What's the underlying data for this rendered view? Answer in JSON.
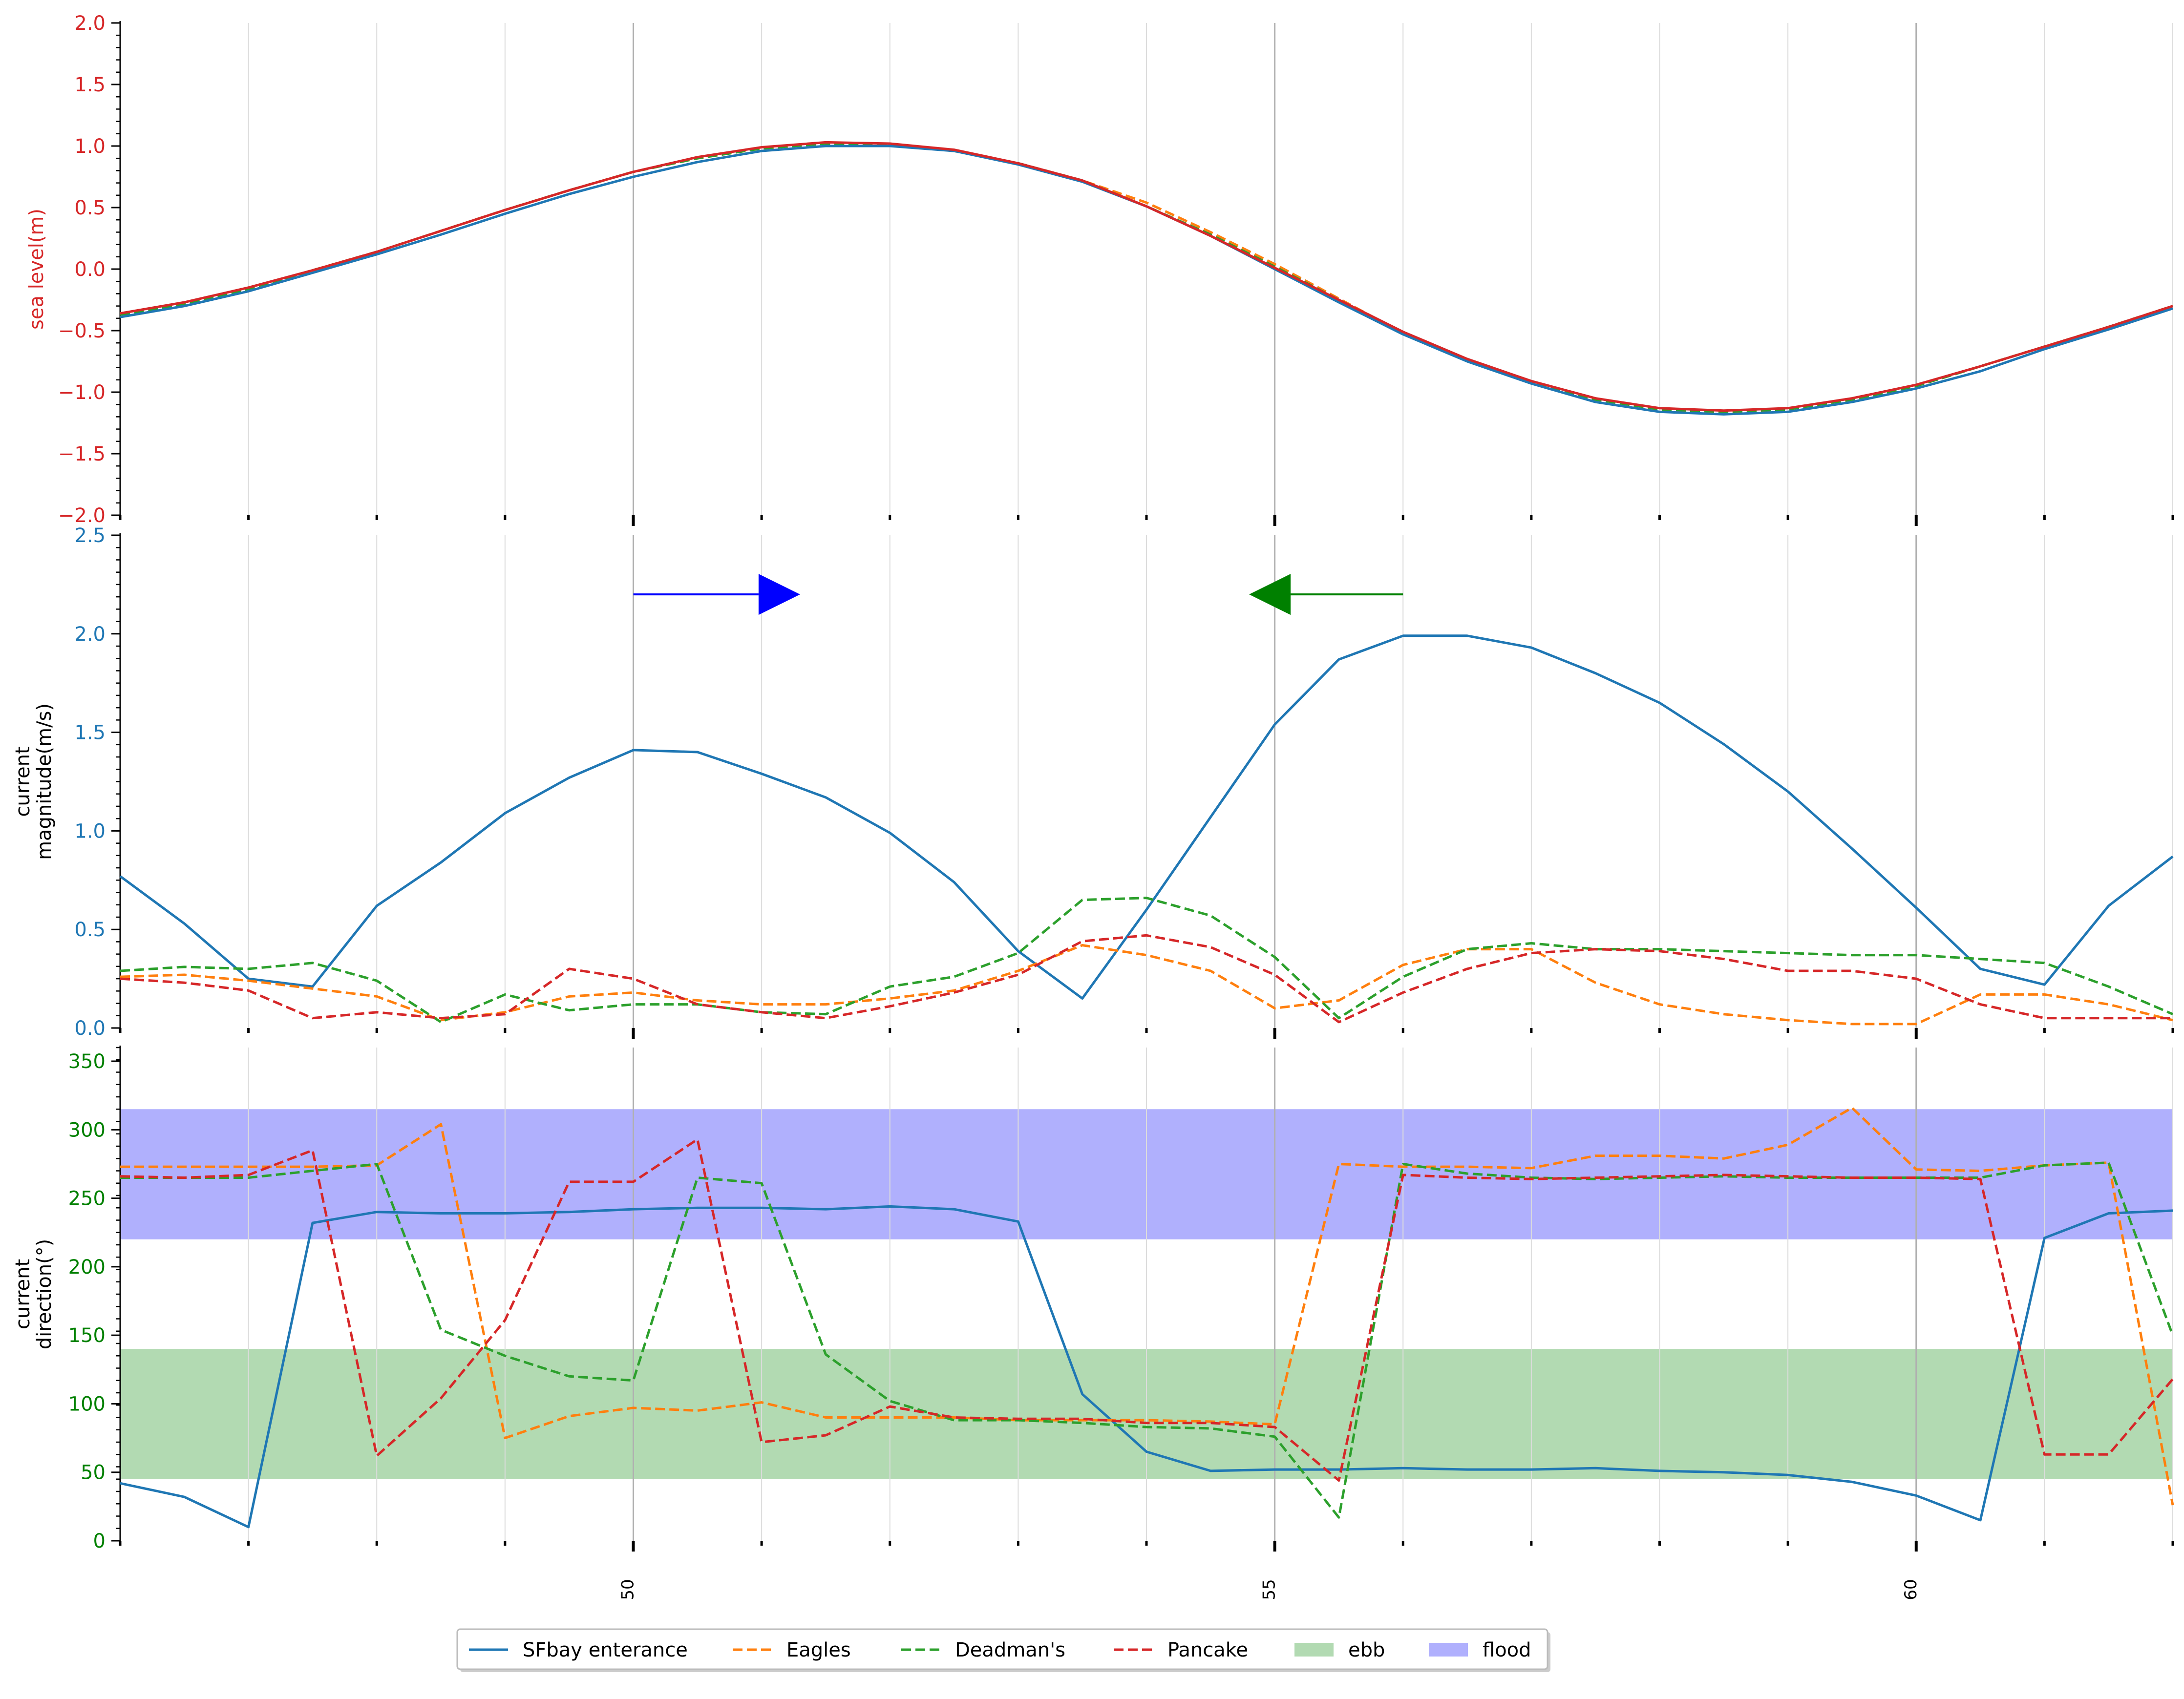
{
  "colors": {
    "sfbay": "#1f77b4",
    "eagles": "#ff7f0e",
    "deadmans": "#2ca02c",
    "pancake": "#d62728",
    "ebb": "#b2dab2",
    "flood": "#b0b0fd",
    "arrow_flood": "#0000ff",
    "arrow_ebb": "#008000"
  },
  "legend": [
    {
      "label": "SFbay enterance",
      "type": "line",
      "color": "#1f77b4",
      "dash": false
    },
    {
      "label": "Eagles",
      "type": "line",
      "color": "#ff7f0e",
      "dash": true
    },
    {
      "label": "Deadman's",
      "type": "line",
      "color": "#2ca02c",
      "dash": true
    },
    {
      "label": "Pancake",
      "type": "line",
      "color": "#d62728",
      "dash": true
    },
    {
      "label": "ebb",
      "type": "patch",
      "color": "#b2dab2"
    },
    {
      "label": "flood",
      "type": "patch",
      "color": "#b0b0fd"
    }
  ],
  "chart_data": [
    {
      "type": "line",
      "panel": "sea-level",
      "ylabel": "sea level(m)",
      "ylabel_color": "#d62728",
      "tick_color": "#d62728",
      "ylim": [
        -2.0,
        2.0
      ],
      "yticks": [
        "2.0",
        "1.5",
        "1.0",
        "0.5",
        "0.0",
        "−0.5",
        "−1.0",
        "−1.5",
        "−2.0"
      ],
      "ytick_values": [
        2.0,
        1.5,
        1.0,
        0.5,
        0.0,
        -0.5,
        -1.0,
        -1.5,
        -2.0
      ],
      "xlim": [
        46,
        62
      ],
      "grid": "vertical",
      "x": [
        46,
        46.5,
        47,
        47.5,
        48,
        48.5,
        49,
        49.5,
        50,
        50.5,
        51,
        51.5,
        52,
        52.5,
        53,
        53.5,
        54,
        54.5,
        55,
        55.5,
        56,
        56.5,
        57,
        57.5,
        58,
        58.5,
        59,
        59.5,
        60,
        60.5,
        61,
        61.5,
        62
      ],
      "series": [
        {
          "name": "Eagles",
          "color": "#ff7f0e",
          "dash": true,
          "values": [
            -0.36,
            -0.28,
            -0.16,
            -0.01,
            0.14,
            0.31,
            0.48,
            0.64,
            0.79,
            0.9,
            0.98,
            1.02,
            1.01,
            0.96,
            0.86,
            0.72,
            0.54,
            0.3,
            0.04,
            -0.24,
            -0.52,
            -0.74,
            -0.92,
            -1.06,
            -1.14,
            -1.17,
            -1.14,
            -1.06,
            -0.95,
            -0.79,
            -0.63,
            -0.47,
            -0.3
          ]
        },
        {
          "name": "Deadman's",
          "color": "#2ca02c",
          "dash": true,
          "values": [
            -0.37,
            -0.29,
            -0.16,
            -0.01,
            0.14,
            0.31,
            0.48,
            0.64,
            0.79,
            0.9,
            0.98,
            1.02,
            1.01,
            0.96,
            0.86,
            0.72,
            0.51,
            0.28,
            0.02,
            -0.25,
            -0.52,
            -0.74,
            -0.92,
            -1.06,
            -1.14,
            -1.16,
            -1.14,
            -1.06,
            -0.95,
            -0.79,
            -0.63,
            -0.47,
            -0.3
          ]
        },
        {
          "name": "SFbay enterance",
          "color": "#1f77b4",
          "dash": false,
          "values": [
            -0.39,
            -0.3,
            -0.18,
            -0.03,
            0.12,
            0.28,
            0.45,
            0.61,
            0.75,
            0.87,
            0.96,
            1.0,
            1.0,
            0.96,
            0.85,
            0.71,
            0.51,
            0.27,
            0.0,
            -0.27,
            -0.53,
            -0.75,
            -0.93,
            -1.08,
            -1.16,
            -1.18,
            -1.16,
            -1.08,
            -0.97,
            -0.83,
            -0.65,
            -0.49,
            -0.32
          ]
        },
        {
          "name": "Pancake",
          "color": "#d62728",
          "dash": false,
          "values": [
            -0.36,
            -0.27,
            -0.15,
            -0.01,
            0.14,
            0.31,
            0.48,
            0.64,
            0.79,
            0.91,
            0.99,
            1.03,
            1.02,
            0.97,
            0.86,
            0.72,
            0.51,
            0.27,
            0.01,
            -0.25,
            -0.51,
            -0.73,
            -0.91,
            -1.05,
            -1.13,
            -1.15,
            -1.13,
            -1.05,
            -0.94,
            -0.79,
            -0.63,
            -0.47,
            -0.3
          ]
        }
      ]
    },
    {
      "type": "line",
      "panel": "current-magnitude",
      "ylabel": [
        "current",
        "magnitude(m/s)"
      ],
      "ylabel_color": "#000000",
      "tick_color": "#1f77b4",
      "ylim": [
        0.0,
        2.5
      ],
      "yticks": [
        "2.5",
        "2.0",
        "1.5",
        "1.0",
        "0.5",
        "0.0"
      ],
      "ytick_values": [
        2.5,
        2.0,
        1.5,
        1.0,
        0.5,
        0.0
      ],
      "xlim": [
        46,
        62
      ],
      "grid": "vertical",
      "arrows": [
        {
          "direction": "right",
          "from": 50,
          "to": 51.3,
          "y": 2.2,
          "color": "#0000ff"
        },
        {
          "direction": "left",
          "from": 56,
          "to": 54.8,
          "y": 2.2,
          "color": "#008000"
        }
      ],
      "x": [
        46,
        46.5,
        47,
        47.5,
        48,
        48.5,
        49,
        49.5,
        50,
        50.5,
        51,
        51.5,
        52,
        52.5,
        53,
        53.5,
        54,
        54.5,
        55,
        55.5,
        56,
        56.5,
        57,
        57.5,
        58,
        58.5,
        59,
        59.5,
        60,
        60.5,
        61,
        61.5,
        62
      ],
      "series": [
        {
          "name": "SFbay enterance",
          "color": "#1f77b4",
          "dash": false,
          "values": [
            0.77,
            0.53,
            0.25,
            0.21,
            0.62,
            0.84,
            1.09,
            1.27,
            1.41,
            1.4,
            1.29,
            1.17,
            0.99,
            0.74,
            0.39,
            0.15,
            0.6,
            1.07,
            1.54,
            1.87,
            1.99,
            1.99,
            1.93,
            1.8,
            1.65,
            1.44,
            1.2,
            0.91,
            0.61,
            0.3,
            0.22,
            0.62,
            0.87
          ]
        },
        {
          "name": "Eagles",
          "color": "#ff7f0e",
          "dash": true,
          "values": [
            0.26,
            0.27,
            0.24,
            0.2,
            0.16,
            0.04,
            0.08,
            0.16,
            0.18,
            0.14,
            0.12,
            0.12,
            0.15,
            0.19,
            0.29,
            0.42,
            0.37,
            0.29,
            0.1,
            0.14,
            0.32,
            0.4,
            0.4,
            0.23,
            0.12,
            0.07,
            0.04,
            0.02,
            0.02,
            0.17,
            0.17,
            0.12,
            0.04
          ]
        },
        {
          "name": "Deadman's",
          "color": "#2ca02c",
          "dash": true,
          "values": [
            0.29,
            0.31,
            0.3,
            0.33,
            0.24,
            0.03,
            0.17,
            0.09,
            0.12,
            0.12,
            0.08,
            0.07,
            0.21,
            0.26,
            0.38,
            0.65,
            0.66,
            0.57,
            0.36,
            0.05,
            0.26,
            0.4,
            0.43,
            0.4,
            0.4,
            0.39,
            0.38,
            0.37,
            0.37,
            0.35,
            0.33,
            0.21,
            0.07
          ]
        },
        {
          "name": "Pancake",
          "color": "#d62728",
          "dash": true,
          "values": [
            0.25,
            0.23,
            0.19,
            0.05,
            0.08,
            0.05,
            0.07,
            0.3,
            0.25,
            0.12,
            0.08,
            0.05,
            0.11,
            0.18,
            0.27,
            0.44,
            0.47,
            0.41,
            0.27,
            0.03,
            0.18,
            0.3,
            0.38,
            0.4,
            0.39,
            0.35,
            0.29,
            0.29,
            0.25,
            0.12,
            0.05,
            0.05,
            0.05
          ]
        }
      ]
    },
    {
      "type": "line",
      "panel": "current-direction",
      "ylabel": [
        "current",
        "direction(°)"
      ],
      "ylabel_color": "#000000",
      "tick_color": "#008000",
      "ylim": [
        0,
        360
      ],
      "yticks": [
        "350",
        "300",
        "250",
        "200",
        "150",
        "100",
        "50",
        "0"
      ],
      "ytick_values": [
        350,
        300,
        250,
        200,
        150,
        100,
        50,
        0
      ],
      "xlim": [
        46,
        62
      ],
      "xticks": [
        "50",
        "55",
        "60"
      ],
      "xtick_values": [
        50,
        55,
        60
      ],
      "grid": "vertical",
      "bands": [
        {
          "name": "ebb",
          "from": 45,
          "to": 140,
          "color": "#b2dab2"
        },
        {
          "name": "flood",
          "from": 220,
          "to": 315,
          "color": "#b0b0fd"
        }
      ],
      "x": [
        46,
        46.5,
        47,
        47.5,
        48,
        48.5,
        49,
        49.5,
        50,
        50.5,
        51,
        51.5,
        52,
        52.5,
        53,
        53.5,
        54,
        54.5,
        55,
        55.5,
        56,
        56.5,
        57,
        57.5,
        58,
        58.5,
        59,
        59.5,
        60,
        60.5,
        61,
        61.5,
        62
      ],
      "series": [
        {
          "name": "SFbay enterance",
          "color": "#1f77b4",
          "dash": false,
          "values": [
            42,
            32,
            10,
            232,
            240,
            239,
            239,
            240,
            242,
            243,
            243,
            242,
            244,
            242,
            233,
            107,
            65,
            51,
            52,
            52,
            53,
            52,
            52,
            53,
            51,
            50,
            48,
            43,
            33,
            15,
            221,
            239,
            241
          ]
        },
        {
          "name": "Eagles",
          "color": "#ff7f0e",
          "dash": true,
          "values": [
            273,
            273,
            273,
            273,
            274,
            304,
            75,
            91,
            97,
            95,
            101,
            90,
            90,
            90,
            88,
            88,
            88,
            87,
            85,
            275,
            273,
            273,
            272,
            281,
            281,
            279,
            289,
            316,
            271,
            270,
            274,
            276,
            26
          ]
        },
        {
          "name": "Deadman's",
          "color": "#2ca02c",
          "dash": true,
          "values": [
            265,
            265,
            265,
            270,
            275,
            154,
            135,
            120,
            117,
            265,
            261,
            136,
            102,
            88,
            88,
            86,
            83,
            82,
            76,
            17,
            275,
            268,
            265,
            264,
            265,
            266,
            265,
            265,
            265,
            265,
            274,
            276,
            150
          ]
        },
        {
          "name": "Pancake",
          "color": "#d62728",
          "dash": true,
          "values": [
            266,
            265,
            267,
            285,
            62,
            104,
            161,
            262,
            262,
            293,
            72,
            77,
            98,
            90,
            89,
            89,
            86,
            86,
            83,
            44,
            267,
            265,
            264,
            265,
            266,
            267,
            266,
            265,
            265,
            264,
            63,
            63,
            118
          ]
        }
      ]
    }
  ]
}
